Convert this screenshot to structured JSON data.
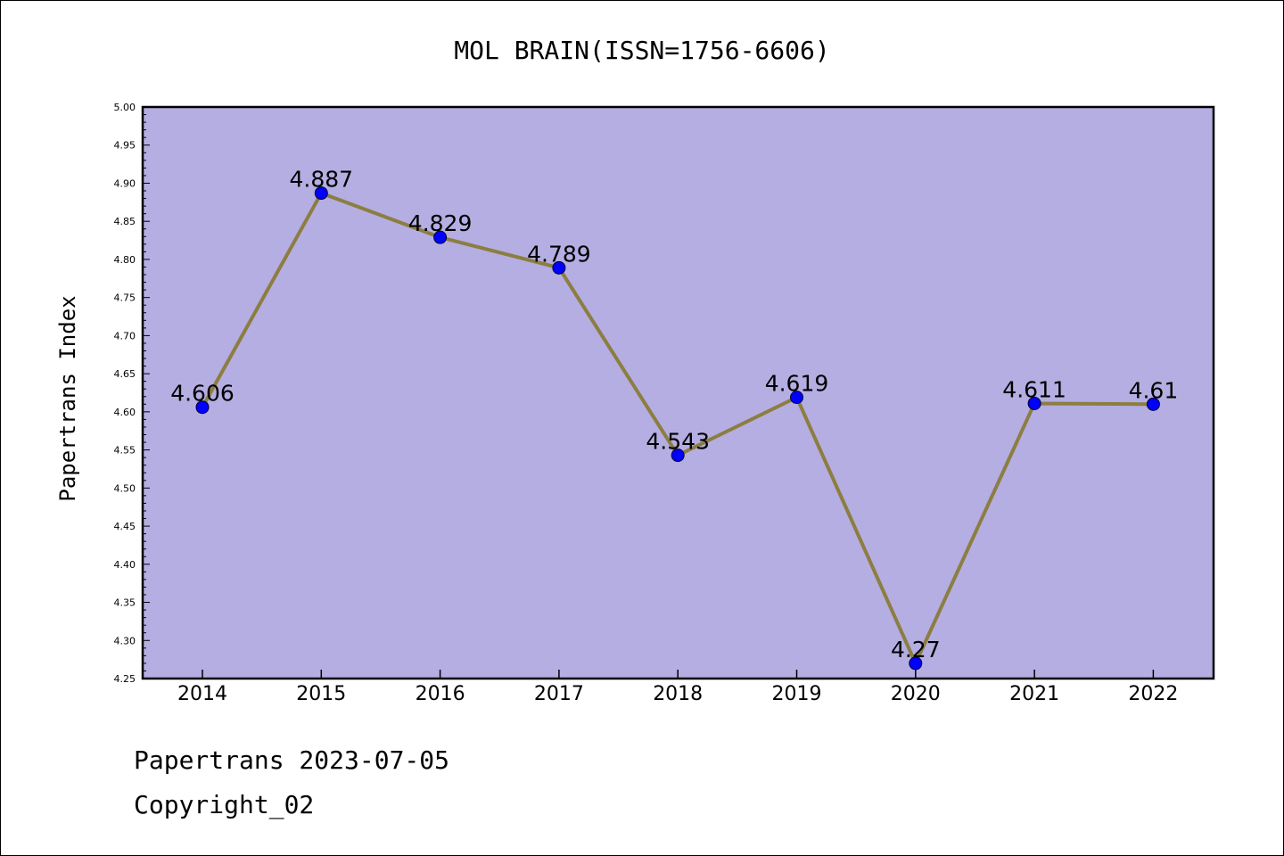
{
  "chart_data": {
    "type": "line",
    "title": "MOL BRAIN(ISSN=1756-6606)",
    "xlabel": "",
    "ylabel": "Papertrans Index",
    "categories": [
      "2014",
      "2015",
      "2016",
      "2017",
      "2018",
      "2019",
      "2020",
      "2021",
      "2022"
    ],
    "series": [
      {
        "values": [
          4.606,
          4.887,
          4.829,
          4.789,
          4.543,
          4.619,
          4.27,
          4.611,
          4.61
        ],
        "labels": [
          "4.606",
          "4.887",
          "4.829",
          "4.789",
          "4.543",
          "4.619",
          "4.27",
          "4.611",
          "4.61"
        ]
      }
    ],
    "ylim": [
      4.25,
      5.0
    ],
    "yticks": [
      "4.25",
      "4.30",
      "4.35",
      "4.40",
      "4.45",
      "4.50",
      "4.55",
      "4.60",
      "4.65",
      "4.70",
      "4.75",
      "4.80",
      "4.85",
      "4.90",
      "4.95",
      "5.00"
    ],
    "grid": false,
    "legend": "none",
    "colors": {
      "plot_background": "#b4aee2",
      "line": "#8c7d41",
      "marker": "#0000ff"
    }
  },
  "footer": {
    "line1": "Papertrans 2023-07-05",
    "line2": "Copyright_02"
  }
}
